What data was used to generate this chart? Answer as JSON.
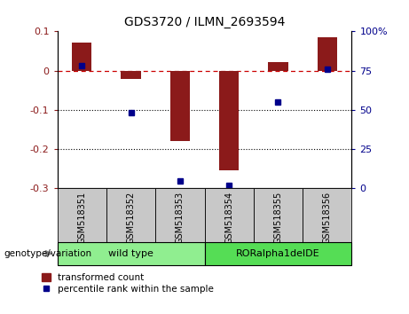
{
  "title": "GDS3720 / ILMN_2693594",
  "samples": [
    "GSM518351",
    "GSM518352",
    "GSM518353",
    "GSM518354",
    "GSM518355",
    "GSM518356"
  ],
  "transformed_count": [
    0.072,
    -0.022,
    -0.18,
    -0.255,
    0.022,
    0.085
  ],
  "percentile_rank": [
    78,
    48,
    5,
    2,
    55,
    76
  ],
  "ylim_left": [
    -0.3,
    0.1
  ],
  "ylim_right": [
    0,
    100
  ],
  "yticks_left": [
    -0.3,
    -0.2,
    -0.1,
    0.0,
    0.1
  ],
  "yticks_right": [
    0,
    25,
    50,
    75,
    100
  ],
  "bar_color": "#8B1A1A",
  "dot_color": "#00008B",
  "groups": [
    {
      "label": "wild type",
      "indices": [
        0,
        1,
        2
      ],
      "color": "#90EE90"
    },
    {
      "label": "RORalpha1delDE",
      "indices": [
        3,
        4,
        5
      ],
      "color": "#55DD55"
    }
  ],
  "genotype_label": "genotype/variation",
  "legend_bar_label": "transformed count",
  "legend_dot_label": "percentile rank within the sample",
  "hline_color": "#CC0000",
  "dotted_line_color": "#000000",
  "plot_bg": "#FFFFFF",
  "tick_area_bg": "#C8C8C8",
  "bar_width": 0.4
}
